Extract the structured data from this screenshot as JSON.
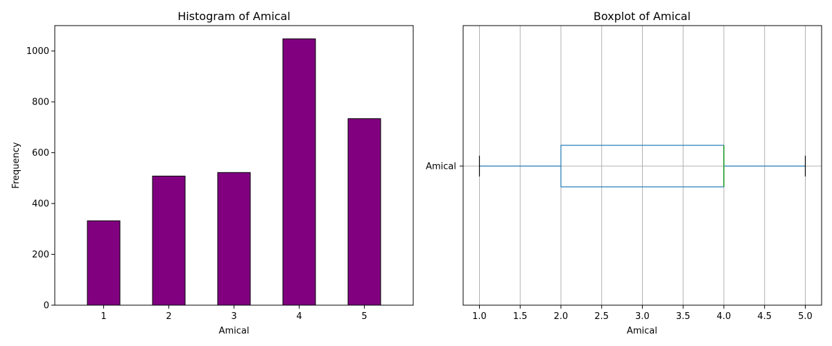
{
  "chart_data": [
    {
      "type": "bar",
      "title": "Histogram of Amical",
      "xlabel": "Amical",
      "ylabel": "Frequency",
      "categories": [
        "1",
        "2",
        "3",
        "4",
        "5"
      ],
      "values": [
        332,
        508,
        522,
        1048,
        734
      ],
      "ylim": [
        0,
        1100
      ],
      "yticks": [
        0,
        200,
        400,
        600,
        800,
        1000
      ],
      "bar_color": "#800080",
      "edge_color": "#000000",
      "grid": false
    },
    {
      "type": "box",
      "title": "Boxplot of Amical",
      "xlabel": "Amical",
      "category_label": "Amical",
      "orientation": "horizontal",
      "whisker_low": 1.0,
      "q1": 2.0,
      "median": 4.0,
      "q3": 4.0,
      "whisker_high": 5.0,
      "xlim": [
        0.8,
        5.2
      ],
      "xticks": [
        "1.0",
        "1.5",
        "2.0",
        "2.5",
        "3.0",
        "3.5",
        "4.0",
        "4.5",
        "5.0"
      ],
      "box_color": "#1f77b4",
      "median_color": "#2ca02c",
      "cap_color": "#000000",
      "grid": true
    }
  ]
}
